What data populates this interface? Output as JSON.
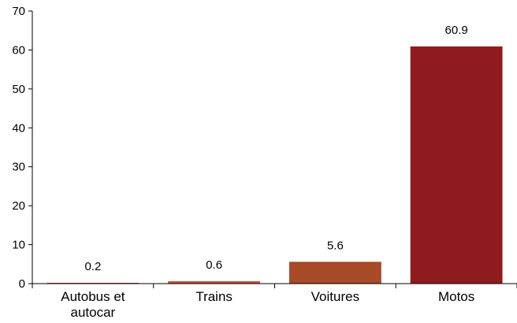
{
  "chart_data": {
    "type": "bar",
    "categories": [
      [
        "Autobus et",
        "autocar"
      ],
      [
        "Trains"
      ],
      [
        "Voitures"
      ],
      [
        "Motos"
      ]
    ],
    "values": [
      0.2,
      0.6,
      5.6,
      60.9
    ],
    "value_labels": [
      "0.2",
      "0.6",
      "5.6",
      "60.9"
    ],
    "colors": [
      "#C93C2A",
      "#CF4A38",
      "#A64A28",
      "#8E1B1D"
    ],
    "ylim": [
      0,
      70
    ],
    "yticks": [
      0,
      10,
      20,
      30,
      40,
      50,
      60,
      70
    ],
    "grid": false,
    "legend": "none"
  }
}
